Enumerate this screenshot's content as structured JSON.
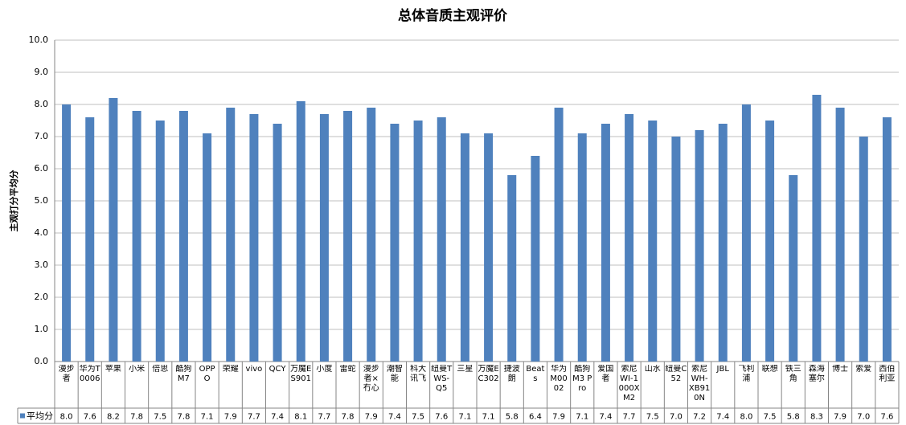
{
  "chart_data": {
    "type": "bar",
    "title": "总体音质主观评价",
    "y_label": "主观打分平均分",
    "categories": [
      "漫步者",
      "华为T0006",
      "苹果",
      "小米",
      "倍思",
      "酷狗M7",
      "OPPO",
      "荣耀",
      "vivo",
      "QCY",
      "万魔ES901",
      "小度",
      "雷蛇",
      "漫步者×冇心",
      "潮智能",
      "科大讯飞",
      "纽曼TWS-Q5",
      "三星",
      "万魔EC302",
      "捷波朗",
      "Beats",
      "华为M0002",
      "酷狗M3 Pro",
      "爱国者",
      "索尼WI-1000XM2",
      "山水",
      "纽曼C52",
      "索尼WH-XB910N",
      "JBL",
      "飞利浦",
      "联想",
      "铁三角",
      "森海塞尔",
      "博士",
      "索爱",
      "西伯利亚"
    ],
    "series": [
      {
        "name": "平均分",
        "color": "#4f81bd",
        "values": [
          8.0,
          7.6,
          8.2,
          7.8,
          7.5,
          7.8,
          7.1,
          7.9,
          7.7,
          7.4,
          8.1,
          7.7,
          7.8,
          7.9,
          7.4,
          7.5,
          7.6,
          7.1,
          7.1,
          5.8,
          6.4,
          7.9,
          7.1,
          7.4,
          7.7,
          7.5,
          7.0,
          7.2,
          7.4,
          8.0,
          7.5,
          5.8,
          8.3,
          7.9,
          7.0,
          7.6
        ],
        "value_labels": [
          "8.0",
          "7.6",
          "8.2",
          "7.8",
          "7.5",
          "7.8",
          "7.1",
          "7.9",
          "7.7",
          "7.4",
          "8.1",
          "7.7",
          "7.8",
          "7.9",
          "7.4",
          "7.5",
          "7.6",
          "7.1",
          "7.1",
          "5.8",
          "6.4",
          "7.9",
          "7.1",
          "7.4",
          "7.7",
          "7.5",
          "7.0",
          "7.2",
          "7.4",
          "8.0",
          "7.5",
          "5.8",
          "8.3",
          "7.9",
          "7.0",
          "7.6"
        ]
      }
    ],
    "ylim": [
      0,
      10
    ],
    "yticks": [
      {
        "value": 0,
        "label": "0.0"
      },
      {
        "value": 1,
        "label": "1.0"
      },
      {
        "value": 2,
        "label": "2.0"
      },
      {
        "value": 3,
        "label": "3.0"
      },
      {
        "value": 4,
        "label": "4.0"
      },
      {
        "value": 5,
        "label": "5.0"
      },
      {
        "value": 6,
        "label": "6.0"
      },
      {
        "value": 7,
        "label": "7.0"
      },
      {
        "value": 8,
        "label": "8.0"
      },
      {
        "value": 9,
        "label": "9.0"
      },
      {
        "value": 10,
        "label": "10.0"
      }
    ],
    "grid": true
  }
}
